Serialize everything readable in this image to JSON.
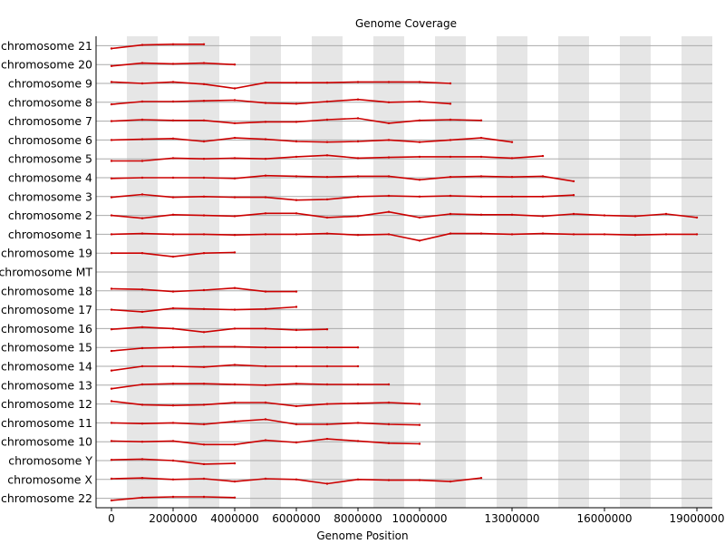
{
  "chart_data": {
    "type": "line",
    "title": "Genome Coverage",
    "xlabel": "Genome Position",
    "ylabel": "",
    "xlim": [
      -500000,
      19500000
    ],
    "xticks": [
      0,
      2000000,
      4000000,
      6000000,
      8000000,
      10000000,
      13000000,
      16000000,
      19000000
    ],
    "xtick_labels": [
      "0",
      "2000000",
      "4000000",
      "6000000",
      "8000000",
      "10000000",
      "13000000",
      "16000000",
      "19000000"
    ],
    "grid": "horizontal lines per category; alternating vertical shaded bands every 1000000",
    "line_color": "#cc0000",
    "band_color": "#e6e6e6",
    "categories": [
      "chromosome 21",
      "chromosome 20",
      "chromosome 9",
      "chromosome 8",
      "chromosome 7",
      "chromosome 6",
      "chromosome 5",
      "chromosome 4",
      "chromosome 3",
      "chromosome 2",
      "chromosome 1",
      "chromosome 19",
      "chromosome MT",
      "chromosome 18",
      "chromosome 17",
      "chromosome 16",
      "chromosome 15",
      "chromosome 14",
      "chromosome 13",
      "chromosome 12",
      "chromosome 11",
      "chromosome 10",
      "chromosome Y",
      "chromosome X",
      "chromosome 22"
    ],
    "series": [
      {
        "name": "chromosome 21",
        "x": [
          0,
          1000000,
          2000000,
          3000000
        ],
        "y": [
          -0.2,
          0.05,
          0.1,
          0.1
        ]
      },
      {
        "name": "chromosome 20",
        "x": [
          0,
          1000000,
          2000000,
          3000000,
          4000000
        ],
        "y": [
          -0.1,
          0.1,
          0.05,
          0.1,
          0.0
        ]
      },
      {
        "name": "chromosome 9",
        "x": [
          0,
          1000000,
          2000000,
          3000000,
          4000000,
          5000000,
          6000000,
          7000000,
          8000000,
          9000000,
          10000000,
          11000000
        ],
        "y": [
          0.1,
          0.0,
          0.1,
          -0.05,
          -0.35,
          0.05,
          0.05,
          0.05,
          0.1,
          0.1,
          0.1,
          0.0
        ]
      },
      {
        "name": "chromosome 8",
        "x": [
          0,
          1000000,
          2000000,
          3000000,
          4000000,
          5000000,
          6000000,
          7000000,
          8000000,
          9000000,
          10000000,
          11000000
        ],
        "y": [
          -0.15,
          0.05,
          0.05,
          0.1,
          0.15,
          -0.05,
          -0.1,
          0.05,
          0.2,
          0.0,
          0.05,
          -0.1
        ]
      },
      {
        "name": "chromosome 7",
        "x": [
          0,
          1000000,
          2000000,
          3000000,
          4000000,
          5000000,
          6000000,
          7000000,
          8000000,
          9000000,
          10000000,
          11000000,
          12000000
        ],
        "y": [
          0.0,
          0.1,
          0.05,
          0.05,
          -0.15,
          -0.05,
          -0.05,
          0.1,
          0.2,
          -0.15,
          0.05,
          0.1,
          0.05
        ]
      },
      {
        "name": "chromosome 6",
        "x": [
          0,
          1000000,
          2000000,
          3000000,
          4000000,
          5000000,
          6000000,
          7000000,
          8000000,
          9000000,
          10000000,
          11000000,
          12000000,
          13000000
        ],
        "y": [
          0.0,
          0.05,
          0.1,
          -0.1,
          0.15,
          0.05,
          -0.1,
          -0.15,
          -0.1,
          0.0,
          -0.15,
          0.0,
          0.15,
          -0.15
        ]
      },
      {
        "name": "chromosome 5",
        "x": [
          0,
          1000000,
          2000000,
          3000000,
          4000000,
          5000000,
          6000000,
          7000000,
          8000000,
          9000000,
          10000000,
          11000000,
          12000000,
          13000000,
          14000000
        ],
        "y": [
          -0.15,
          -0.15,
          0.05,
          0.0,
          0.05,
          0.0,
          0.15,
          0.25,
          0.05,
          0.1,
          0.15,
          0.15,
          0.15,
          0.05,
          0.2
        ]
      },
      {
        "name": "chromosome 4",
        "x": [
          0,
          1000000,
          2000000,
          3000000,
          4000000,
          5000000,
          6000000,
          7000000,
          8000000,
          9000000,
          10000000,
          11000000,
          12000000,
          13000000,
          14000000,
          15000000
        ],
        "y": [
          -0.05,
          0.0,
          0.0,
          0.0,
          -0.05,
          0.15,
          0.1,
          0.05,
          0.1,
          0.1,
          -0.15,
          0.05,
          0.1,
          0.05,
          0.1,
          -0.25
        ]
      },
      {
        "name": "chromosome 3",
        "x": [
          0,
          1000000,
          2000000,
          3000000,
          4000000,
          5000000,
          6000000,
          7000000,
          8000000,
          9000000,
          10000000,
          11000000,
          12000000,
          13000000,
          14000000,
          15000000
        ],
        "y": [
          -0.05,
          0.15,
          -0.05,
          0.0,
          -0.05,
          -0.05,
          -0.25,
          -0.2,
          0.0,
          0.05,
          0.0,
          0.05,
          0.0,
          0.0,
          0.0,
          0.1
        ]
      },
      {
        "name": "chromosome 2",
        "x": [
          0,
          1000000,
          2000000,
          3000000,
          4000000,
          5000000,
          6000000,
          7000000,
          8000000,
          9000000,
          10000000,
          11000000,
          12000000,
          13000000,
          14000000,
          15000000,
          16000000,
          17000000,
          18000000,
          19000000
        ],
        "y": [
          0.0,
          -0.2,
          0.05,
          0.0,
          -0.05,
          0.15,
          0.15,
          -0.15,
          -0.05,
          0.25,
          -0.15,
          0.1,
          0.05,
          0.05,
          -0.05,
          0.1,
          0.0,
          -0.05,
          0.1,
          -0.15
        ]
      },
      {
        "name": "chromosome 1",
        "x": [
          0,
          1000000,
          2000000,
          3000000,
          4000000,
          5000000,
          6000000,
          7000000,
          8000000,
          9000000,
          10000000,
          11000000,
          12000000,
          13000000,
          14000000,
          15000000,
          16000000,
          17000000,
          18000000,
          19000000
        ],
        "y": [
          0.0,
          0.05,
          0.0,
          0.0,
          -0.05,
          0.0,
          0.0,
          0.05,
          -0.05,
          0.0,
          -0.45,
          0.05,
          0.05,
          0.0,
          0.05,
          0.0,
          0.0,
          -0.05,
          0.0,
          0.0
        ]
      },
      {
        "name": "chromosome 19",
        "x": [
          0,
          1000000,
          2000000,
          3000000,
          4000000
        ],
        "y": [
          0.0,
          0.0,
          -0.25,
          0.0,
          0.05
        ]
      },
      {
        "name": "chromosome MT",
        "x": [],
        "y": []
      },
      {
        "name": "chromosome 18",
        "x": [
          0,
          1000000,
          2000000,
          3000000,
          4000000,
          5000000,
          6000000
        ],
        "y": [
          0.15,
          0.1,
          -0.05,
          0.05,
          0.2,
          -0.05,
          -0.05
        ]
      },
      {
        "name": "chromosome 17",
        "x": [
          0,
          1000000,
          2000000,
          3000000,
          4000000,
          5000000,
          6000000
        ],
        "y": [
          0.0,
          -0.15,
          0.1,
          0.05,
          0.0,
          0.05,
          0.2
        ]
      },
      {
        "name": "chromosome 16",
        "x": [
          0,
          1000000,
          2000000,
          3000000,
          4000000,
          5000000,
          6000000,
          7000000
        ],
        "y": [
          -0.05,
          0.1,
          0.0,
          -0.25,
          0.0,
          0.0,
          -0.1,
          -0.05
        ]
      },
      {
        "name": "chromosome 15",
        "x": [
          0,
          1000000,
          2000000,
          3000000,
          4000000,
          5000000,
          6000000,
          7000000,
          8000000
        ],
        "y": [
          -0.25,
          -0.05,
          0.0,
          0.05,
          0.05,
          0.0,
          0.0,
          0.0,
          0.0
        ]
      },
      {
        "name": "chromosome 14",
        "x": [
          0,
          1000000,
          2000000,
          3000000,
          4000000,
          5000000,
          6000000,
          7000000,
          8000000
        ],
        "y": [
          -0.3,
          0.0,
          0.0,
          -0.05,
          0.1,
          0.0,
          0.0,
          0.0,
          0.0
        ]
      },
      {
        "name": "chromosome 13",
        "x": [
          0,
          1000000,
          2000000,
          3000000,
          4000000,
          5000000,
          6000000,
          7000000,
          8000000,
          9000000
        ],
        "y": [
          -0.25,
          0.05,
          0.1,
          0.1,
          0.05,
          0.0,
          0.1,
          0.05,
          0.05,
          0.05
        ]
      },
      {
        "name": "chromosome 12",
        "x": [
          0,
          1000000,
          2000000,
          3000000,
          4000000,
          5000000,
          6000000,
          7000000,
          8000000,
          9000000,
          10000000
        ],
        "y": [
          0.2,
          -0.05,
          -0.1,
          -0.05,
          0.1,
          0.1,
          -0.15,
          0.0,
          0.05,
          0.1,
          0.0
        ]
      },
      {
        "name": "chromosome 11",
        "x": [
          0,
          1000000,
          2000000,
          3000000,
          4000000,
          5000000,
          6000000,
          7000000,
          8000000,
          9000000,
          10000000
        ],
        "y": [
          0.0,
          -0.05,
          0.0,
          -0.1,
          0.1,
          0.25,
          -0.1,
          -0.1,
          0.0,
          -0.1,
          -0.15
        ]
      },
      {
        "name": "chromosome 10",
        "x": [
          0,
          1000000,
          2000000,
          3000000,
          4000000,
          5000000,
          6000000,
          7000000,
          8000000,
          9000000,
          10000000
        ],
        "y": [
          0.05,
          0.0,
          0.05,
          -0.2,
          -0.2,
          0.1,
          -0.05,
          0.2,
          0.05,
          -0.1,
          -0.15
        ]
      },
      {
        "name": "chromosome Y",
        "x": [
          0,
          1000000,
          2000000,
          3000000,
          4000000
        ],
        "y": [
          0.05,
          0.1,
          0.0,
          -0.25,
          -0.2
        ]
      },
      {
        "name": "chromosome X",
        "x": [
          0,
          1000000,
          2000000,
          3000000,
          4000000,
          5000000,
          6000000,
          7000000,
          8000000,
          9000000,
          10000000,
          11000000,
          12000000
        ],
        "y": [
          0.05,
          0.1,
          0.0,
          0.05,
          -0.15,
          0.05,
          0.0,
          -0.3,
          0.0,
          -0.05,
          -0.05,
          -0.15,
          0.1
        ]
      },
      {
        "name": "chromosome 22",
        "x": [
          0,
          1000000,
          2000000,
          3000000,
          4000000
        ],
        "y": [
          -0.15,
          0.05,
          0.1,
          0.1,
          0.05
        ]
      }
    ]
  }
}
